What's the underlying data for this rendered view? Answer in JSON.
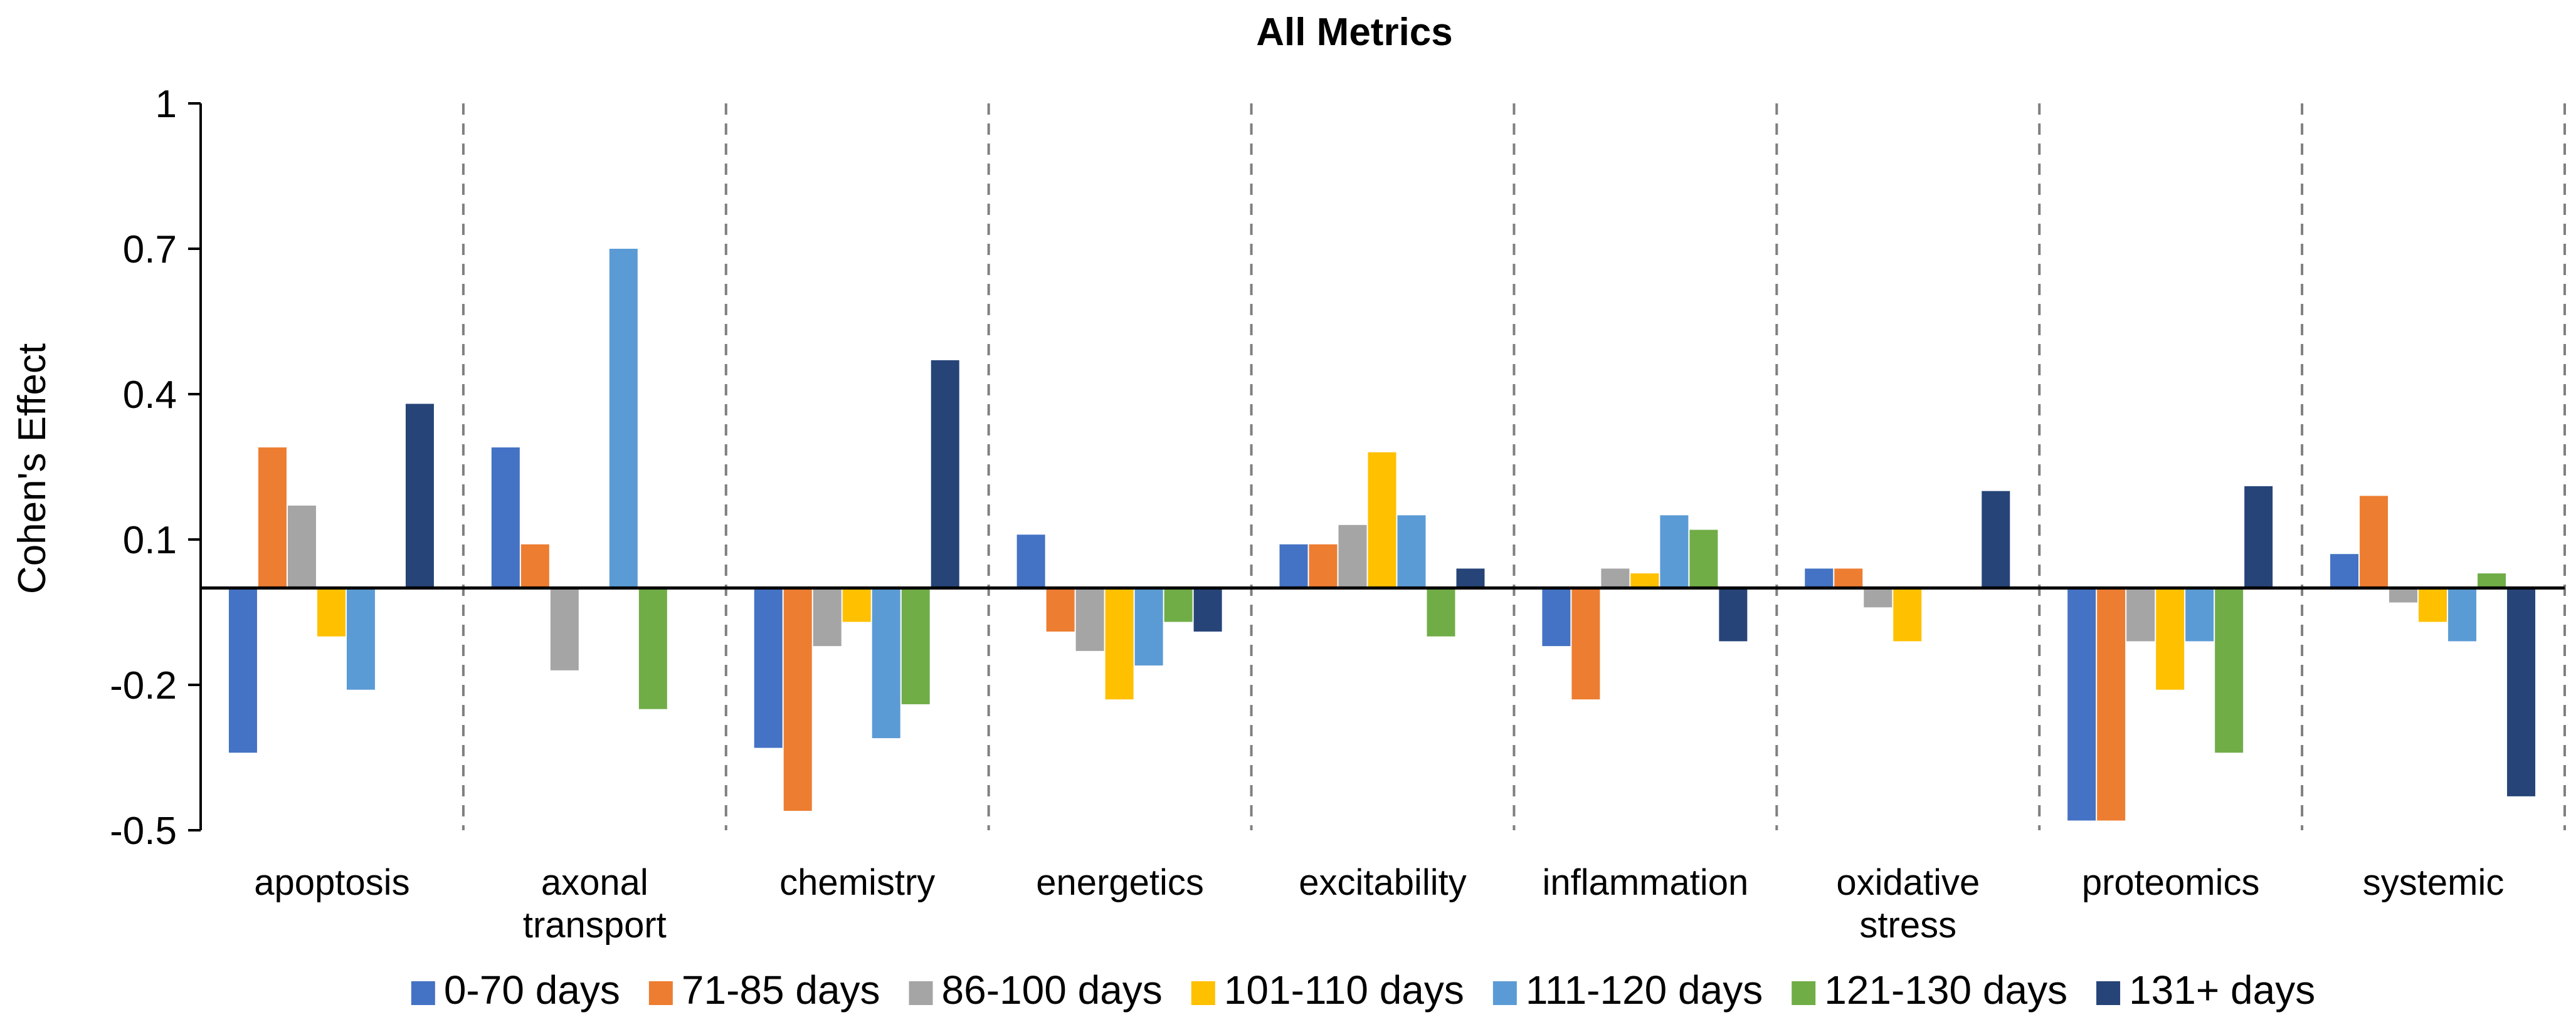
{
  "chart_data": {
    "type": "bar",
    "title": "All Metrics",
    "xlabel": "",
    "ylabel": "Cohen's Effect",
    "ylim": [
      -0.5,
      1
    ],
    "yticks": [
      {
        "value": 1,
        "label": "1"
      },
      {
        "value": 0.7,
        "label": "0.7"
      },
      {
        "value": 0.4,
        "label": "0.4"
      },
      {
        "value": 0.1,
        "label": "0.1"
      },
      {
        "value": -0.2,
        "label": "-0.2"
      },
      {
        "value": -0.5,
        "label": "-0.5"
      }
    ],
    "categories": [
      [
        "apoptosis"
      ],
      [
        "axonal",
        "transport"
      ],
      [
        "chemistry"
      ],
      [
        "energetics"
      ],
      [
        "excitability"
      ],
      [
        "inflammation"
      ],
      [
        "oxidative",
        "stress"
      ],
      [
        "proteomics"
      ],
      [
        "systemic"
      ]
    ],
    "legend_position": "bottom",
    "series": [
      {
        "name": "0-70 days",
        "color": "#4472C4",
        "values": [
          -0.34,
          0.29,
          -0.33,
          0.11,
          0.09,
          -0.12,
          0.04,
          -0.48,
          0.07
        ]
      },
      {
        "name": "71-85 days",
        "color": "#ED7D31",
        "values": [
          0.29,
          0.09,
          -0.46,
          -0.09,
          0.09,
          -0.23,
          0.04,
          -0.48,
          0.19
        ]
      },
      {
        "name": "86-100 days",
        "color": "#A5A5A5",
        "values": [
          0.17,
          -0.17,
          -0.12,
          -0.13,
          0.13,
          0.04,
          -0.04,
          -0.11,
          -0.03
        ]
      },
      {
        "name": "101-110 days",
        "color": "#FFC000",
        "values": [
          -0.1,
          0.0,
          -0.07,
          -0.23,
          0.28,
          0.03,
          -0.11,
          -0.21,
          -0.07
        ]
      },
      {
        "name": "111-120 days",
        "color": "#5B9BD5",
        "values": [
          -0.21,
          0.7,
          -0.31,
          -0.16,
          0.15,
          0.15,
          0.0,
          -0.11,
          -0.11
        ]
      },
      {
        "name": "121-130 days",
        "color": "#70AD47",
        "values": [
          0.0,
          -0.25,
          -0.24,
          -0.07,
          -0.1,
          0.12,
          0.0,
          -0.34,
          0.03
        ]
      },
      {
        "name": "131+ days",
        "color": "#264478",
        "values": [
          0.38,
          0.0,
          0.47,
          -0.09,
          0.04,
          -0.11,
          0.2,
          0.21,
          -0.43
        ]
      }
    ]
  }
}
